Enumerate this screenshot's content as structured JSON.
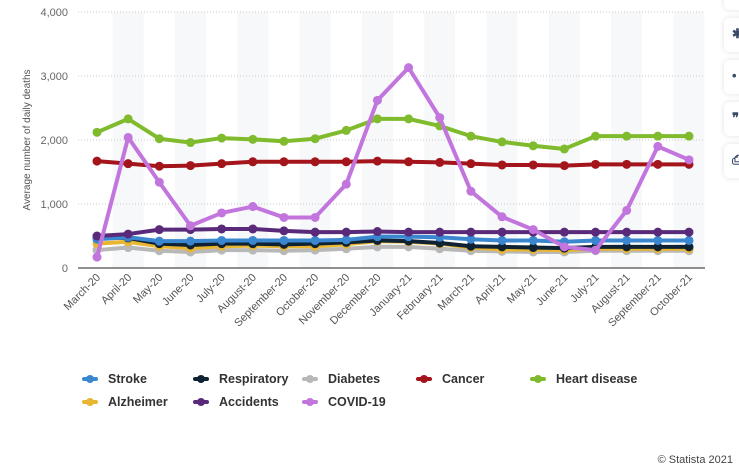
{
  "chart_data": {
    "type": "line",
    "title": "",
    "xlabel": "",
    "ylabel": "Average number of daily deaths",
    "ylim": [
      0,
      4000
    ],
    "yticks": [
      "0",
      "1,000",
      "2,000",
      "3,000",
      "4,000"
    ],
    "ytick_values": [
      0,
      1000,
      2000,
      3000,
      4000
    ],
    "grid": true,
    "legend_position": "bottom",
    "categories": [
      "March-20",
      "April-20",
      "May-20",
      "June-20",
      "July-20",
      "August-20",
      "September-20",
      "October-20",
      "November-20",
      "December-20",
      "January-21",
      "February-21",
      "March-21",
      "April-21",
      "May-21",
      "June-21",
      "July-21",
      "August-21",
      "September-21",
      "October-21"
    ],
    "series": [
      {
        "name": "Diabetes",
        "color": "#b8b8b8",
        "values": [
          280,
          320,
          270,
          250,
          280,
          280,
          270,
          280,
          300,
          330,
          330,
          300,
          270,
          260,
          250,
          250,
          270,
          270,
          270,
          270
        ]
      },
      {
        "name": "Alzheimer",
        "color": "#e8b631",
        "values": [
          380,
          410,
          340,
          310,
          340,
          350,
          340,
          340,
          370,
          420,
          410,
          380,
          320,
          290,
          290,
          280,
          300,
          300,
          300,
          300
        ]
      },
      {
        "name": "Respiratory",
        "color": "#0f2233",
        "values": [
          470,
          470,
          380,
          360,
          380,
          380,
          370,
          380,
          400,
          430,
          420,
          390,
          340,
          330,
          320,
          310,
          330,
          330,
          330,
          330
        ]
      },
      {
        "name": "Stroke",
        "color": "#3a87d0",
        "values": [
          450,
          480,
          420,
          420,
          430,
          430,
          430,
          430,
          440,
          490,
          490,
          480,
          450,
          430,
          430,
          410,
          430,
          430,
          430,
          430
        ]
      },
      {
        "name": "Accidents",
        "color": "#5a2a7a",
        "values": [
          500,
          530,
          600,
          600,
          610,
          610,
          580,
          560,
          560,
          570,
          560,
          560,
          560,
          560,
          560,
          560,
          560,
          560,
          560,
          560
        ]
      },
      {
        "name": "Cancer",
        "color": "#a3141b",
        "values": [
          1670,
          1630,
          1590,
          1600,
          1630,
          1660,
          1660,
          1660,
          1660,
          1670,
          1660,
          1650,
          1630,
          1610,
          1610,
          1600,
          1620,
          1620,
          1620,
          1620
        ]
      },
      {
        "name": "Heart disease",
        "color": "#7fbb2d",
        "values": [
          2120,
          2330,
          2020,
          1960,
          2030,
          2010,
          1980,
          2020,
          2150,
          2330,
          2330,
          2220,
          2060,
          1970,
          1910,
          1860,
          2060,
          2060,
          2060,
          2060
        ]
      },
      {
        "name": "COVID-19",
        "color": "#c275dd",
        "values": [
          170,
          2040,
          1340,
          660,
          860,
          960,
          790,
          790,
          1310,
          2620,
          3130,
          2350,
          1200,
          800,
          600,
          330,
          280,
          900,
          1900,
          1690
        ]
      }
    ],
    "legend_order": [
      "Stroke",
      "Respiratory",
      "Diabetes",
      "Cancer",
      "Heart disease",
      "Alzheimer",
      "Accidents",
      "COVID-19"
    ]
  },
  "toolbar": [
    {
      "icon": "bell-icon",
      "glyph": "🔔"
    },
    {
      "icon": "gear-icon",
      "glyph": "✱"
    },
    {
      "icon": "share-icon",
      "glyph": "•"
    },
    {
      "icon": "quote-icon",
      "glyph": "❞"
    },
    {
      "icon": "print-icon",
      "glyph": "⎙"
    }
  ],
  "credit": "© Statista 2021"
}
